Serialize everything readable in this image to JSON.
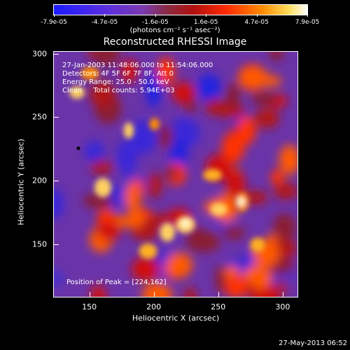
{
  "chart_data": {
    "type": "heatmap",
    "title": "Reconstructed RHESSI Image",
    "xlabel": "Heliocentric X (arcsec)",
    "ylabel": "Heliocentric Y (arcsec)",
    "xlim": [
      122,
      312
    ],
    "ylim": [
      108,
      302
    ],
    "xticks": [
      "150",
      "200",
      "250",
      "300"
    ],
    "yticks": [
      "150",
      "200",
      "250",
      "300"
    ],
    "colorbar": {
      "range": [
        -7.9e-05,
        7.9e-05
      ],
      "ticks": [
        "-7.9e-05",
        "-4.7e-05",
        "-1.6e-05",
        "1.6e-05",
        "4.7e-05",
        "7.9e-05"
      ],
      "units": "(photons cm⁻² s⁻¹ asec⁻²)"
    },
    "annotations": {
      "time": "27-Jan-2003 11:48:06.000 to 11:54:06.000",
      "detectors": "Detectors: 4F 5F 6F 7F 8F, Att 0",
      "energy": "Energy Range: 25.0 - 50.0 keV",
      "clean": "Clean     Total counts: 5.94E+03",
      "peak": "Position of Peak = [224,162]"
    },
    "peak": [
      224,
      162
    ],
    "marker": [
      141,
      226
    ]
  },
  "footer": {
    "timestamp": "27-May-2013 06:52"
  }
}
